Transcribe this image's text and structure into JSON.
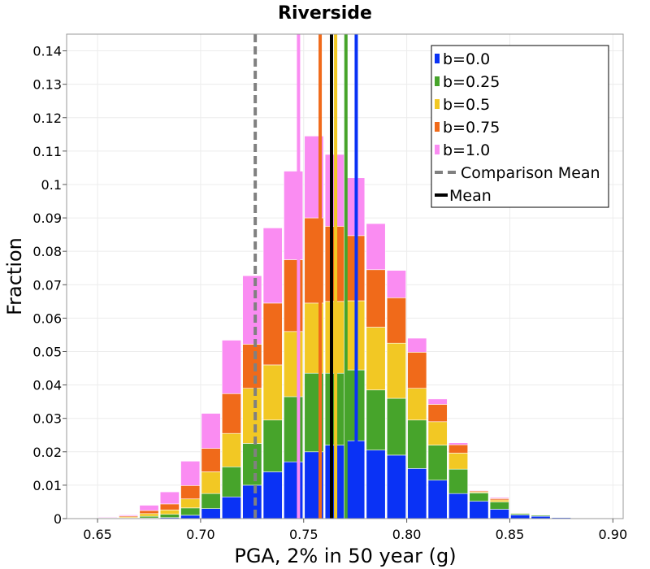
{
  "chart_data": {
    "type": "bar",
    "stacked": true,
    "title": "Riverside",
    "xlabel": "PGA, 2% in 50 year (g)",
    "ylabel": "Fraction",
    "xlim": [
      0.635,
      0.905
    ],
    "ylim": [
      0,
      0.145
    ],
    "xticks": [
      "0.65",
      "0.70",
      "0.75",
      "0.80",
      "0.85",
      "0.90"
    ],
    "xtick_values": [
      0.65,
      0.7,
      0.75,
      0.8,
      0.85,
      0.9
    ],
    "yticks": [
      "0",
      "0.01",
      "0.02",
      "0.03",
      "0.04",
      "0.05",
      "0.06",
      "0.07",
      "0.08",
      "0.09",
      "0.1",
      "0.11",
      "0.12",
      "0.13",
      "0.14"
    ],
    "ytick_values": [
      0,
      0.01,
      0.02,
      0.03,
      0.04,
      0.05,
      0.06,
      0.07,
      0.08,
      0.09,
      0.1,
      0.11,
      0.12,
      0.13,
      0.14
    ],
    "grid": true,
    "legend_position": "top-right",
    "bin_width": 0.01,
    "bin_centers": [
      0.645,
      0.655,
      0.665,
      0.675,
      0.685,
      0.695,
      0.705,
      0.715,
      0.725,
      0.735,
      0.745,
      0.755,
      0.765,
      0.775,
      0.785,
      0.795,
      0.805,
      0.815,
      0.825,
      0.835,
      0.845,
      0.855,
      0.865,
      0.875,
      0.885,
      0.895
    ],
    "series": [
      {
        "name": "b=0.0",
        "color": "#0a32f5",
        "values": [
          0.0,
          0.0,
          0.0,
          0.0002,
          0.0003,
          0.001,
          0.003,
          0.0065,
          0.01,
          0.014,
          0.017,
          0.02,
          0.022,
          0.0233,
          0.0205,
          0.019,
          0.015,
          0.0115,
          0.0075,
          0.0052,
          0.0028,
          0.0011,
          0.0007,
          0.0003,
          0.0001,
          0.0
        ]
      },
      {
        "name": "b=0.25",
        "color": "#47a42b",
        "values": [
          0.0,
          0.0001,
          0.0002,
          0.0005,
          0.001,
          0.0022,
          0.0045,
          0.009,
          0.0125,
          0.0155,
          0.0195,
          0.0235,
          0.0215,
          0.0212,
          0.018,
          0.017,
          0.0145,
          0.0105,
          0.0073,
          0.0025,
          0.0022,
          0.0004,
          0.0003,
          0.0001,
          0.0,
          0.0
        ]
      },
      {
        "name": "b=0.5",
        "color": "#f2c824",
        "values": [
          0.0,
          0.0001,
          0.0003,
          0.0008,
          0.0013,
          0.0027,
          0.0065,
          0.01,
          0.0165,
          0.0165,
          0.0195,
          0.021,
          0.0215,
          0.0207,
          0.0188,
          0.0165,
          0.0095,
          0.007,
          0.0048,
          0.0003,
          0.0006,
          0.0002,
          0.0,
          0.0,
          0.0,
          0.0
        ]
      },
      {
        "name": "b=0.75",
        "color": "#f06a1a",
        "values": [
          0.0,
          0.0001,
          0.0003,
          0.0009,
          0.0018,
          0.004,
          0.007,
          0.0119,
          0.0132,
          0.0185,
          0.0215,
          0.0255,
          0.0225,
          0.0195,
          0.0172,
          0.0136,
          0.0108,
          0.0052,
          0.0025,
          0.0003,
          0.0004,
          0.0001,
          0.0,
          0.0,
          0.0,
          0.0
        ]
      },
      {
        "name": "b=1.0",
        "color": "#fa8cf2",
        "values": [
          0.0001,
          0.0002,
          0.0003,
          0.0016,
          0.0036,
          0.0073,
          0.0105,
          0.016,
          0.0205,
          0.0225,
          0.0265,
          0.0245,
          0.0215,
          0.0173,
          0.0138,
          0.0082,
          0.0042,
          0.0016,
          0.0006,
          0.0002,
          0.0003,
          0.0001,
          0.0,
          0.0,
          0.0,
          0.0
        ]
      }
    ],
    "mean_lines": [
      {
        "series": "b=0.0",
        "x": 0.7755,
        "color": "#0a32f5"
      },
      {
        "series": "b=0.25",
        "x": 0.7705,
        "color": "#47a42b"
      },
      {
        "series": "b=0.5",
        "x": 0.7655,
        "color": "#f2c824"
      },
      {
        "series": "b=0.75",
        "x": 0.758,
        "color": "#f06a1a"
      },
      {
        "series": "b=1.0",
        "x": 0.7475,
        "color": "#fa8cf2"
      }
    ],
    "overall_mean": {
      "name": "Mean",
      "x": 0.7635,
      "color": "#000000"
    },
    "comparison_mean": {
      "name": "Comparison Mean",
      "x": 0.7265,
      "color": "#808080"
    }
  }
}
